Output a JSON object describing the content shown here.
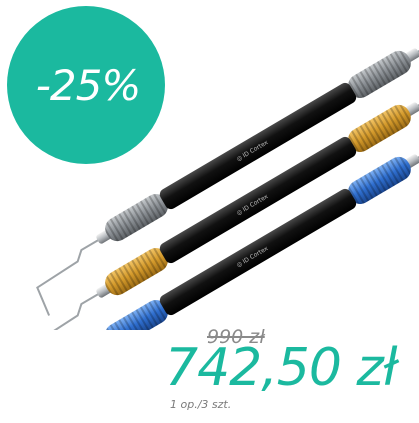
{
  "badge": {
    "discount": "-25%",
    "color": "#1bb99f"
  },
  "product": {
    "image_name": "dental-instruments-image",
    "instruments": [
      {
        "handle_color": "grey",
        "grip_color": "#8c9196"
      },
      {
        "handle_color": "gold",
        "grip_color": "#d49a2b"
      },
      {
        "handle_color": "blue",
        "grip_color": "#2f6fd0"
      }
    ]
  },
  "pricing": {
    "old_price": "990 zł",
    "new_price": "742,50 zł",
    "pack_info": "1 op./3 szt.",
    "accent_color": "#1bb99f"
  }
}
